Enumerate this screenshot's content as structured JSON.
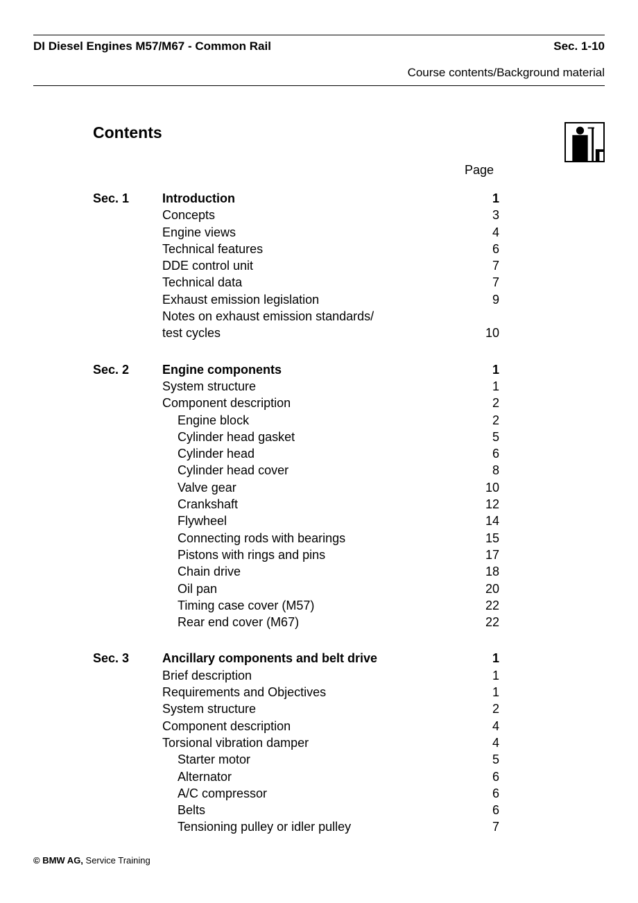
{
  "header": {
    "left": "DI Diesel Engines M57/M67 - Common Rail",
    "right": "Sec. 1-10",
    "sub": "Course contents/Background material"
  },
  "contents_title": "Contents",
  "page_label": "Page",
  "sections": [
    {
      "label": "Sec. 1",
      "heading": "Introduction",
      "heading_page": "1",
      "items": [
        {
          "title": "Concepts",
          "page": "3",
          "indent": 0
        },
        {
          "title": "Engine views",
          "page": "4",
          "indent": 0
        },
        {
          "title": "Technical features",
          "page": "6",
          "indent": 0
        },
        {
          "title": "DDE control unit",
          "page": "7",
          "indent": 0
        },
        {
          "title": "Technical data",
          "page": "7",
          "indent": 0
        },
        {
          "title": "Exhaust emission legislation",
          "page": "9",
          "indent": 0
        },
        {
          "title": "Notes on exhaust emission standards/",
          "page": "",
          "indent": 0
        },
        {
          "title": "test cycles",
          "page": "10",
          "indent": 0
        }
      ]
    },
    {
      "label": "Sec. 2",
      "heading": "Engine components",
      "heading_page": "1",
      "items": [
        {
          "title": "System structure",
          "page": "1",
          "indent": 0
        },
        {
          "title": "Component description",
          "page": "2",
          "indent": 0
        },
        {
          "title": "Engine block",
          "page": "2",
          "indent": 1
        },
        {
          "title": "Cylinder head gasket",
          "page": "5",
          "indent": 1
        },
        {
          "title": "Cylinder head",
          "page": "6",
          "indent": 1
        },
        {
          "title": "Cylinder head cover",
          "page": "8",
          "indent": 1
        },
        {
          "title": "Valve gear",
          "page": "10",
          "indent": 1
        },
        {
          "title": "Crankshaft",
          "page": "12",
          "indent": 1
        },
        {
          "title": "Flywheel",
          "page": "14",
          "indent": 1
        },
        {
          "title": "Connecting rods with bearings",
          "page": "15",
          "indent": 1
        },
        {
          "title": "Pistons with rings and pins",
          "page": "17",
          "indent": 1
        },
        {
          "title": "Chain drive",
          "page": "18",
          "indent": 1
        },
        {
          "title": "Oil pan",
          "page": "20",
          "indent": 1
        },
        {
          "title": "Timing case cover (M57)",
          "page": "22",
          "indent": 1
        },
        {
          "title": "Rear end cover (M67)",
          "page": "22",
          "indent": 1
        }
      ]
    },
    {
      "label": "Sec. 3",
      "heading": "Ancillary components and belt drive",
      "heading_page": "1",
      "items": [
        {
          "title": "Brief description",
          "page": "1",
          "indent": 0
        },
        {
          "title": "Requirements and Objectives",
          "page": "1",
          "indent": 0
        },
        {
          "title": "System structure",
          "page": "2",
          "indent": 0
        },
        {
          "title": "Component description",
          "page": "4",
          "indent": 0
        },
        {
          "title": "Torsional vibration damper",
          "page": "4",
          "indent": 0
        },
        {
          "title": "Starter motor",
          "page": "5",
          "indent": 1
        },
        {
          "title": "Alternator",
          "page": "6",
          "indent": 1
        },
        {
          "title": "A/C compressor",
          "page": "6",
          "indent": 1
        },
        {
          "title": "Belts",
          "page": "6",
          "indent": 1
        },
        {
          "title": "Tensioning pulley or idler pulley",
          "page": "7",
          "indent": 1
        }
      ]
    }
  ],
  "footer": {
    "bold": "© BMW AG,",
    "rest": " Service Training"
  }
}
